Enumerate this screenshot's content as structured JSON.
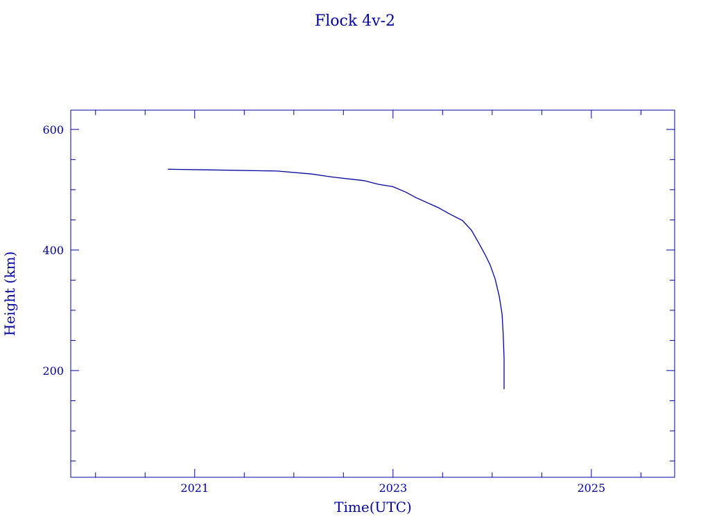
{
  "chart_data": {
    "type": "line",
    "title": "Flock 4v-2",
    "xlabel": "Time(UTC)",
    "ylabel": "Height (km)",
    "xlim": [
      2019.75,
      2025.84
    ],
    "ylim": [
      23,
      632
    ],
    "x_ticks": [
      2021,
      2023,
      2025
    ],
    "x_tick_labels": [
      "2021",
      "2023",
      "2025"
    ],
    "x_minor_step": 0.5,
    "y_ticks": [
      200,
      400,
      600
    ],
    "y_tick_labels": [
      "200",
      "400",
      "600"
    ],
    "y_minor_step": 50,
    "grid": false,
    "color": "#0000a0",
    "series": [
      {
        "x": [
          2020.73,
          2021.13,
          2021.83,
          2022.18,
          2022.39,
          2022.71,
          2022.85,
          2023.0,
          2023.13,
          2023.23,
          2023.46,
          2023.58,
          2023.7,
          2023.79,
          2023.86,
          2023.93,
          2023.98,
          2024.03,
          2024.07,
          2024.1,
          2024.11,
          2024.12,
          2024.12
        ],
        "y": [
          534,
          533,
          531,
          526,
          521,
          515,
          509,
          505,
          496,
          487,
          470,
          459,
          449,
          433,
          413,
          392,
          375,
          352,
          324,
          294,
          263,
          221,
          169
        ]
      }
    ]
  }
}
